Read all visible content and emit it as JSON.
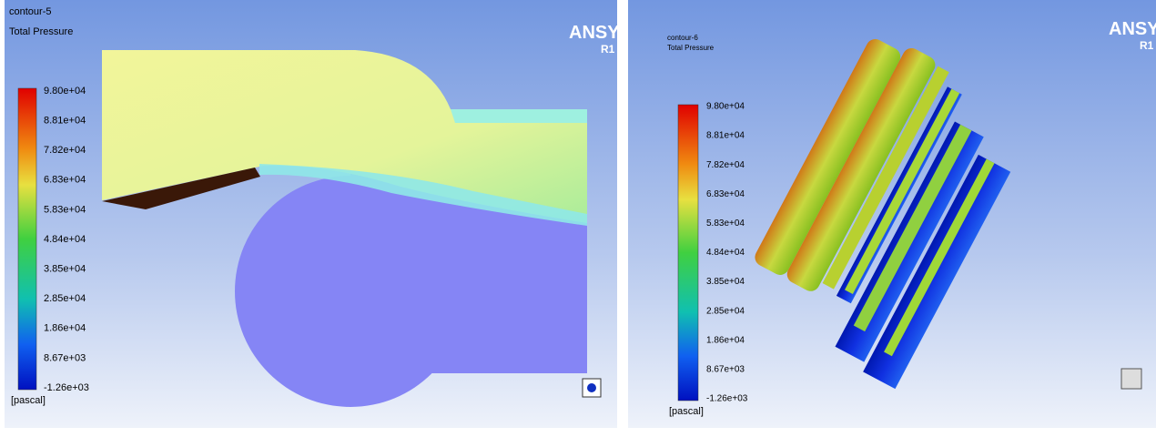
{
  "panels": [
    {
      "title": "contour-5",
      "subtitle": "Total Pressure",
      "logo": "ANSY",
      "version": "R1",
      "legend_labels": [
        "9.80e+04",
        "8.81e+04",
        "7.82e+04",
        "6.83e+04",
        "5.83e+04",
        "4.84e+04",
        "3.85e+04",
        "2.85e+04",
        "1.86e+04",
        "8.67e+03",
        "-1.26e+03"
      ],
      "unit": "[pascal]"
    },
    {
      "title": "contour-6",
      "subtitle": "Total Pressure",
      "logo": "ANSY",
      "version": "R1",
      "legend_labels": [
        "9.80e+04",
        "8.81e+04",
        "7.82e+04",
        "6.83e+04",
        "5.83e+04",
        "4.84e+04",
        "3.85e+04",
        "2.85e+04",
        "1.86e+04",
        "8.67e+03",
        "-1.26e+03"
      ],
      "unit": "[pascal]"
    }
  ]
}
